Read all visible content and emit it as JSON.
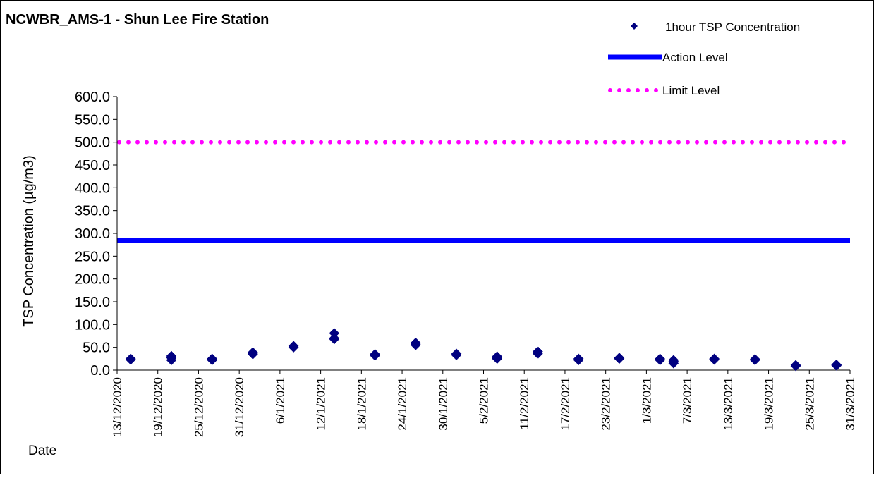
{
  "chart_data": {
    "type": "scatter",
    "title": "NCWBR_AMS-1 - Shun Lee Fire Station",
    "xlabel": "Date",
    "ylabel": "TSP Concentration (µg/m3)",
    "ylim": [
      0,
      600
    ],
    "y_ticks": [
      "0.0",
      "50.0",
      "100.0",
      "150.0",
      "200.0",
      "250.0",
      "300.0",
      "350.0",
      "400.0",
      "450.0",
      "500.0",
      "550.0",
      "600.0"
    ],
    "xlim": [
      "13/12/2020",
      "31/3/2021"
    ],
    "x_ticks": [
      "13/12/2020",
      "19/12/2020",
      "25/12/2020",
      "31/12/2020",
      "6/1/2021",
      "12/1/2021",
      "18/1/2021",
      "24/1/2021",
      "30/1/2021",
      "5/2/2021",
      "11/2/2021",
      "17/2/2021",
      "23/2/2021",
      "1/3/2021",
      "7/3/2021",
      "13/3/2021",
      "19/3/2021",
      "25/3/2021",
      "31/3/2021"
    ],
    "grid": false,
    "legend_position": "top-right",
    "series": [
      {
        "name": "1hour TSP Concentration",
        "marker": "diamond",
        "color": "#000080",
        "points": [
          {
            "x": "15/12/2020",
            "y": 23
          },
          {
            "x": "15/12/2020",
            "y": 25
          },
          {
            "x": "15/12/2020",
            "y": 24
          },
          {
            "x": "21/12/2020",
            "y": 22
          },
          {
            "x": "21/12/2020",
            "y": 31
          },
          {
            "x": "21/12/2020",
            "y": 27
          },
          {
            "x": "27/12/2020",
            "y": 22
          },
          {
            "x": "27/12/2020",
            "y": 25
          },
          {
            "x": "27/12/2020",
            "y": 24
          },
          {
            "x": "2/1/2021",
            "y": 35
          },
          {
            "x": "2/1/2021",
            "y": 39
          },
          {
            "x": "2/1/2021",
            "y": 37
          },
          {
            "x": "8/1/2021",
            "y": 50
          },
          {
            "x": "8/1/2021",
            "y": 53
          },
          {
            "x": "8/1/2021",
            "y": 51
          },
          {
            "x": "14/1/2021",
            "y": 68
          },
          {
            "x": "14/1/2021",
            "y": 81
          },
          {
            "x": "14/1/2021",
            "y": 70
          },
          {
            "x": "20/1/2021",
            "y": 32
          },
          {
            "x": "20/1/2021",
            "y": 35
          },
          {
            "x": "20/1/2021",
            "y": 33
          },
          {
            "x": "26/1/2021",
            "y": 55
          },
          {
            "x": "26/1/2021",
            "y": 60
          },
          {
            "x": "26/1/2021",
            "y": 57
          },
          {
            "x": "1/2/2021",
            "y": 33
          },
          {
            "x": "1/2/2021",
            "y": 36
          },
          {
            "x": "1/2/2021",
            "y": 34
          },
          {
            "x": "7/2/2021",
            "y": 25
          },
          {
            "x": "7/2/2021",
            "y": 30
          },
          {
            "x": "7/2/2021",
            "y": 27
          },
          {
            "x": "13/2/2021",
            "y": 36
          },
          {
            "x": "13/2/2021",
            "y": 41
          },
          {
            "x": "13/2/2021",
            "y": 38
          },
          {
            "x": "19/2/2021",
            "y": 22
          },
          {
            "x": "19/2/2021",
            "y": 25
          },
          {
            "x": "19/2/2021",
            "y": 23
          },
          {
            "x": "25/2/2021",
            "y": 25
          },
          {
            "x": "25/2/2021",
            "y": 27
          },
          {
            "x": "25/2/2021",
            "y": 26
          },
          {
            "x": "3/3/2021",
            "y": 22
          },
          {
            "x": "3/3/2021",
            "y": 25
          },
          {
            "x": "3/3/2021",
            "y": 23
          },
          {
            "x": "5/3/2021",
            "y": 15
          },
          {
            "x": "5/3/2021",
            "y": 22
          },
          {
            "x": "5/3/2021",
            "y": 19
          },
          {
            "x": "11/3/2021",
            "y": 23
          },
          {
            "x": "11/3/2021",
            "y": 25
          },
          {
            "x": "11/3/2021",
            "y": 24
          },
          {
            "x": "17/3/2021",
            "y": 22
          },
          {
            "x": "17/3/2021",
            "y": 24
          },
          {
            "x": "17/3/2021",
            "y": 23
          },
          {
            "x": "23/3/2021",
            "y": 9
          },
          {
            "x": "23/3/2021",
            "y": 11
          },
          {
            "x": "23/3/2021",
            "y": 10
          },
          {
            "x": "29/3/2021",
            "y": 10
          },
          {
            "x": "29/3/2021",
            "y": 12
          },
          {
            "x": "29/3/2021",
            "y": 11
          }
        ]
      },
      {
        "name": "Action Level",
        "style": "solid",
        "color": "#0000FF",
        "y": 284
      },
      {
        "name": "Limit Level",
        "style": "dotted",
        "color": "#FF00FF",
        "y": 500
      }
    ]
  }
}
